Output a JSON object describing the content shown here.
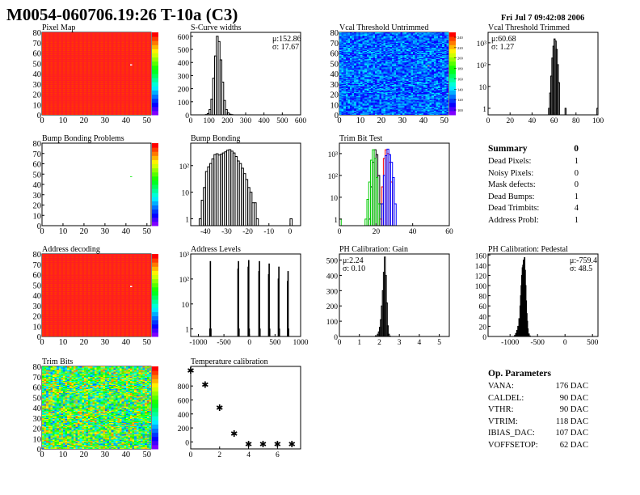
{
  "header": {
    "title": "M0054-060706.19:26 T-10a (C3)",
    "date": "Fri Jul  7 09:42:08 2006"
  },
  "colors": {
    "hist": "#000000",
    "trim_bits": [
      "#000000",
      "#ff0000",
      "#0000ff",
      "#00cc00"
    ]
  },
  "maps": [
    {
      "id": "pixel_map",
      "title": "Pixel Map",
      "fill": "uniform",
      "value": 0.95,
      "special": [
        [
          42,
          48,
          "#ffffff"
        ]
      ],
      "xticks": [
        "0",
        "10",
        "20",
        "30",
        "40",
        "50"
      ],
      "yticks": [
        "0",
        "10",
        "20",
        "30",
        "40",
        "50",
        "60",
        "70",
        "80"
      ],
      "palette": "rainbow",
      "colorbar_ticks": []
    },
    {
      "id": "bump_map",
      "title": "Bump Bonding Problems",
      "fill": "empty",
      "special": [
        [
          42,
          47,
          "#33ee33"
        ]
      ],
      "xticks": [
        "0",
        "10",
        "20",
        "30",
        "40",
        "50"
      ],
      "yticks": [
        "0",
        "10",
        "20",
        "30",
        "40",
        "50",
        "60",
        "70",
        "80"
      ],
      "palette": "rainbow",
      "colorbar_ticks": []
    },
    {
      "id": "address_map",
      "title": "Address decoding",
      "fill": "uniform",
      "value": 0.95,
      "special": [
        [
          42,
          48,
          "#ffffff"
        ]
      ],
      "xticks": [
        "0",
        "10",
        "20",
        "30",
        "40",
        "50"
      ],
      "yticks": [
        "0",
        "10",
        "20",
        "30",
        "40",
        "50",
        "60",
        "70",
        "80"
      ],
      "palette": "rainbow",
      "colorbar_ticks": []
    },
    {
      "id": "trim_map",
      "title": "Trim Bits",
      "fill": "noise",
      "value": 0.55,
      "spread": 0.35,
      "special": [],
      "xticks": [
        "0",
        "10",
        "20",
        "30",
        "40",
        "50"
      ],
      "yticks": [
        "0",
        "10",
        "20",
        "30",
        "40",
        "50",
        "60",
        "70",
        "80"
      ],
      "palette": "rainbow",
      "colorbar_ticks": []
    },
    {
      "id": "vcal_map",
      "title": "Vcal Threshold Untrimmed",
      "fill": "noise",
      "value": 0.2,
      "spread": 0.12,
      "special": [
        [
          42,
          47,
          "#ff6633"
        ]
      ],
      "xticks": [
        "0",
        "10",
        "20",
        "30",
        "40",
        "50"
      ],
      "yticks": [
        "0",
        "10",
        "20",
        "30",
        "40",
        "50",
        "60",
        "70",
        "80"
      ],
      "palette": "rainbow",
      "colorbar_ticks": [
        "100",
        "120",
        "140",
        "160",
        "180",
        "200",
        "220",
        "240"
      ]
    }
  ],
  "chart_data": [
    {
      "id": "scurve",
      "type": "bar",
      "title": "S-Curve widths",
      "stats": [
        "μ:152.86",
        "σ: 17.67"
      ],
      "stats_pos": "top-right",
      "xlim": [
        0,
        600
      ],
      "ylim": [
        0,
        630
      ],
      "log": false,
      "xticks": [
        0,
        100,
        200,
        300,
        400,
        500,
        600
      ],
      "yticks": [
        0,
        100,
        200,
        300,
        400,
        500,
        600
      ],
      "bin_width": 10,
      "series": [
        {
          "bins": [
            [
              80,
              2
            ],
            [
              90,
              10
            ],
            [
              100,
              40
            ],
            [
              110,
              120
            ],
            [
              120,
              280
            ],
            [
              130,
              450
            ],
            [
              140,
              600
            ],
            [
              150,
              560
            ],
            [
              160,
              420
            ],
            [
              170,
              250
            ],
            [
              180,
              110
            ],
            [
              190,
              40
            ],
            [
              200,
              15
            ],
            [
              210,
              5
            ],
            [
              220,
              2
            ]
          ]
        }
      ]
    },
    {
      "id": "vcal_trimmed",
      "type": "bar",
      "title": "Vcal Threshold Trimmed",
      "stats": [
        "μ:60.68",
        "σ: 1.27"
      ],
      "stats_pos": "top-left",
      "xlim": [
        0,
        100
      ],
      "ylim": [
        0.5,
        3000
      ],
      "log": true,
      "xticks": [
        0,
        20,
        40,
        60,
        80,
        100
      ],
      "yticks": [
        1,
        10,
        100,
        1000
      ],
      "bin_width": 1,
      "series": [
        {
          "bins": [
            [
              55,
              1
            ],
            [
              56,
              5
            ],
            [
              57,
              30
            ],
            [
              58,
              200
            ],
            [
              59,
              700
            ],
            [
              60,
              1500
            ],
            [
              61,
              1200
            ],
            [
              62,
              500
            ],
            [
              63,
              100
            ],
            [
              64,
              15
            ],
            [
              70,
              1
            ],
            [
              99,
              1
            ]
          ]
        }
      ]
    },
    {
      "id": "bump_bonding",
      "type": "bar",
      "title": "Bump Bonding",
      "stats": [],
      "xlim": [
        -47,
        5
      ],
      "ylim": [
        0.55,
        700
      ],
      "log": true,
      "xticks": [
        -40,
        -30,
        -20,
        -10,
        0
      ],
      "yticks": [
        1,
        10,
        100
      ],
      "bin_width": 1,
      "series": [
        {
          "bins": [
            [
              -43,
              1
            ],
            [
              -42,
              5
            ],
            [
              -41,
              15
            ],
            [
              -40,
              60
            ],
            [
              -39,
              90
            ],
            [
              -38,
              120
            ],
            [
              -37,
              180
            ],
            [
              -36,
              260
            ],
            [
              -35,
              280
            ],
            [
              -34,
              250
            ],
            [
              -33,
              270
            ],
            [
              -32,
              300
            ],
            [
              -31,
              330
            ],
            [
              -30,
              380
            ],
            [
              -29,
              400
            ],
            [
              -28,
              350
            ],
            [
              -27,
              300
            ],
            [
              -26,
              220
            ],
            [
              -25,
              150
            ],
            [
              -24,
              120
            ],
            [
              -23,
              80
            ],
            [
              -22,
              50
            ],
            [
              -21,
              30
            ],
            [
              -20,
              15
            ],
            [
              -19,
              10
            ],
            [
              -18,
              4
            ],
            [
              -17,
              4
            ],
            [
              -16,
              1
            ],
            [
              0,
              1
            ]
          ]
        }
      ]
    },
    {
      "id": "trim_bit_test",
      "type": "bar",
      "title": "Trim Bit Test",
      "stats": [],
      "xlim": [
        0,
        60
      ],
      "ylim": [
        0.5,
        3000
      ],
      "log": true,
      "xticks": [
        0,
        20,
        40,
        60
      ],
      "yticks": [
        1,
        10,
        100,
        1000
      ],
      "bin_width": 1,
      "series": [
        {
          "bins": [
            [
              16,
              1
            ],
            [
              17,
              30
            ],
            [
              18,
              400
            ],
            [
              19,
              1500
            ],
            [
              20,
              900
            ],
            [
              21,
              100
            ],
            [
              22,
              5
            ]
          ]
        },
        {
          "bins": [
            [
              22,
              1
            ],
            [
              23,
              30
            ],
            [
              24,
              600
            ],
            [
              25,
              1500
            ],
            [
              26,
              1000
            ],
            [
              27,
              400
            ],
            [
              28,
              50
            ]
          ]
        },
        {
          "bins": [
            [
              23,
              5
            ],
            [
              24,
              100
            ],
            [
              25,
              800
            ],
            [
              26,
              1600
            ],
            [
              27,
              900
            ],
            [
              28,
              400
            ],
            [
              29,
              80
            ],
            [
              30,
              5
            ]
          ]
        },
        {
          "bins": [
            [
              0,
              1
            ],
            [
              14,
              1
            ],
            [
              15,
              8
            ],
            [
              16,
              50
            ],
            [
              17,
              500
            ],
            [
              18,
              1500
            ],
            [
              19,
              600
            ],
            [
              20,
              80
            ],
            [
              21,
              5
            ]
          ]
        }
      ]
    },
    {
      "id": "address_levels",
      "type": "bar",
      "title": "Address Levels",
      "stats": [],
      "xlim": [
        -1150,
        1000
      ],
      "ylim": [
        0.5,
        1000
      ],
      "log": true,
      "xticks": [
        -1000,
        -500,
        0,
        500,
        1000
      ],
      "yticks": [
        1,
        10,
        100,
        1000
      ],
      "bin_width": 10,
      "series": [
        {
          "bins": [
            [
              -780,
              1
            ],
            [
              -770,
              500
            ],
            [
              -760,
              1
            ],
            [
              -230,
              250
            ],
            [
              -220,
              500
            ],
            [
              -210,
              1
            ],
            [
              -30,
              300
            ],
            [
              -20,
              550
            ],
            [
              -10,
              1
            ],
            [
              180,
              200
            ],
            [
              190,
              500
            ],
            [
              200,
              1
            ],
            [
              370,
              150
            ],
            [
              380,
              400
            ],
            [
              390,
              1
            ],
            [
              560,
              100
            ],
            [
              570,
              300
            ],
            [
              580,
              1
            ],
            [
              740,
              80
            ],
            [
              750,
              200
            ],
            [
              760,
              1
            ]
          ]
        }
      ]
    },
    {
      "id": "ph_gain",
      "type": "bar",
      "title": "PH Calibration: Gain",
      "stats": [
        "μ:2.24",
        "σ: 0.10"
      ],
      "stats_pos": "top-left",
      "xlim": [
        0,
        5.5
      ],
      "ylim": [
        0,
        540
      ],
      "log": false,
      "xticks": [
        0,
        1,
        2,
        3,
        4,
        5
      ],
      "yticks": [
        0,
        100,
        200,
        300,
        400,
        500
      ],
      "bin_width": 0.05,
      "series": [
        {
          "bins": [
            [
              1.8,
              5
            ],
            [
              1.9,
              15
            ],
            [
              1.95,
              30
            ],
            [
              2.0,
              60
            ],
            [
              2.05,
              110
            ],
            [
              2.1,
              200
            ],
            [
              2.15,
              300
            ],
            [
              2.2,
              420
            ],
            [
              2.25,
              520
            ],
            [
              2.3,
              400
            ],
            [
              2.35,
              220
            ],
            [
              2.4,
              70
            ],
            [
              2.45,
              15
            ],
            [
              2.5,
              3
            ]
          ]
        }
      ]
    },
    {
      "id": "ph_pedestal",
      "type": "bar",
      "title": "PH Calibration: Pedestal",
      "stats": [
        "μ:-759.4",
        "σ: 48.5"
      ],
      "stats_pos": "top-right",
      "xlim": [
        -1400,
        600
      ],
      "ylim": [
        0,
        162
      ],
      "log": false,
      "xticks": [
        -1000,
        -500,
        0,
        500
      ],
      "yticks": [
        0,
        20,
        40,
        60,
        80,
        100,
        120,
        140,
        160
      ],
      "bin_width": 10,
      "series": [
        {
          "bins": [
            [
              -920,
              2
            ],
            [
              -900,
              6
            ],
            [
              -880,
              12
            ],
            [
              -860,
              20
            ],
            [
              -840,
              35
            ],
            [
              -820,
              60
            ],
            [
              -810,
              80
            ],
            [
              -800,
              100
            ],
            [
              -790,
              120
            ],
            [
              -780,
              135
            ],
            [
              -770,
              140
            ],
            [
              -760,
              150
            ],
            [
              -750,
              145
            ],
            [
              -740,
              155
            ],
            [
              -730,
              130
            ],
            [
              -720,
              100
            ],
            [
              -710,
              70
            ],
            [
              -700,
              45
            ],
            [
              -690,
              30
            ],
            [
              -680,
              15
            ],
            [
              -660,
              5
            ],
            [
              -640,
              1
            ]
          ]
        }
      ]
    },
    {
      "id": "temperature",
      "type": "scatter",
      "title": "Temperature calibration",
      "stats": [],
      "xlim": [
        0,
        7.6
      ],
      "ylim": [
        -100,
        1080
      ],
      "log": false,
      "xticks": [
        0,
        2,
        4,
        6
      ],
      "yticks": [
        0,
        200,
        400,
        600,
        800
      ],
      "x": [
        0,
        1,
        2,
        3,
        4,
        5,
        6,
        7
      ],
      "y": [
        1020,
        820,
        490,
        120,
        -30,
        -30,
        -30,
        -30
      ]
    }
  ],
  "summary": {
    "title": "Summary",
    "value": "0",
    "rows": [
      {
        "label": "Dead Pixels:",
        "value": "1"
      },
      {
        "label": "Noisy Pixels:",
        "value": "0"
      },
      {
        "label": "Mask defects:",
        "value": "0"
      },
      {
        "label": "Dead Bumps:",
        "value": "1"
      },
      {
        "label": "Dead Trimbits:",
        "value": "4"
      },
      {
        "label": "Address Probl:",
        "value": "1"
      }
    ]
  },
  "op_params": {
    "title": "Op. Parameters",
    "rows": [
      {
        "label": "VANA:",
        "value": "176 DAC"
      },
      {
        "label": "CALDEL:",
        "value": "90 DAC"
      },
      {
        "label": "VTHR:",
        "value": "90 DAC"
      },
      {
        "label": "VTRIM:",
        "value": "118 DAC"
      },
      {
        "label": "IBIAS_DAC:",
        "value": "107 DAC"
      },
      {
        "label": "VOFFSETOP:",
        "value": "62 DAC"
      }
    ]
  }
}
